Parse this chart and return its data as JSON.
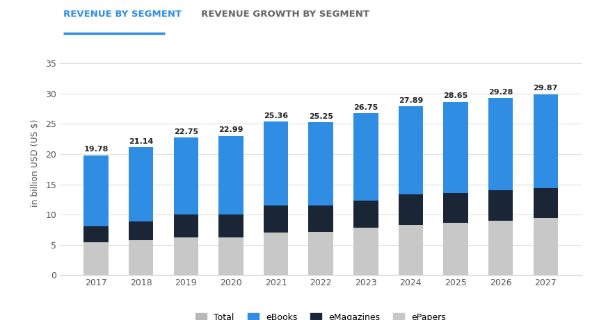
{
  "years": [
    2017,
    2018,
    2019,
    2020,
    2021,
    2022,
    2023,
    2024,
    2025,
    2026,
    2027
  ],
  "totals": [
    19.78,
    21.14,
    22.75,
    22.99,
    25.36,
    25.25,
    26.75,
    27.89,
    28.65,
    29.28,
    29.87
  ],
  "epapers": [
    5.4,
    5.8,
    6.2,
    6.2,
    7.0,
    7.2,
    7.8,
    8.3,
    8.6,
    9.0,
    9.4
  ],
  "emazagines": [
    2.7,
    3.1,
    3.8,
    3.8,
    4.5,
    4.3,
    4.5,
    5.0,
    5.0,
    5.0,
    5.0
  ],
  "color_epapers": "#c8c8c8",
  "color_emazagines": "#1a2535",
  "color_ebooks": "#2f8de4",
  "color_total_legend": "#b8b8b8",
  "bar_width": 0.55,
  "ylim": [
    0,
    37
  ],
  "yticks": [
    0,
    5,
    10,
    15,
    20,
    25,
    30,
    35
  ],
  "ylabel": "in billion USD (US $)",
  "title1": "REVENUE BY SEGMENT",
  "title2": "REVENUE GROWTH BY SEGMENT",
  "legend_labels": [
    "Total",
    "eBooks",
    "eMagazines",
    "ePapers"
  ],
  "bg_color": "#ffffff",
  "grid_color": "#e0e0e0",
  "title_color_active": "#2f8de4",
  "title_color_inactive": "#666666",
  "label_fontsize": 8.0,
  "axis_fontsize": 9.0,
  "title_fontsize": 9.5
}
